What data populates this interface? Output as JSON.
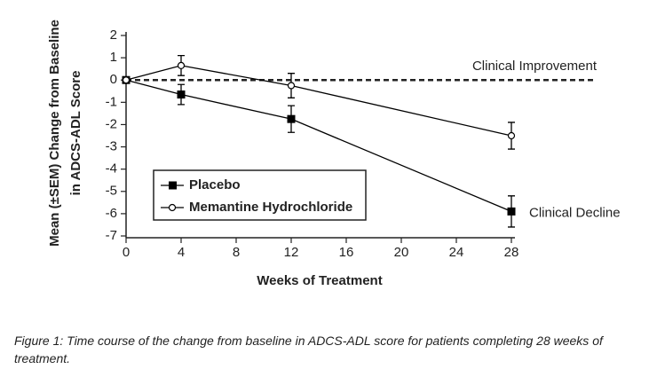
{
  "chart_data": {
    "type": "line",
    "xlabel": "Weeks of Treatment",
    "ylabel": [
      "Mean (±SEM) Change from Baseline",
      "in ADCS-ADL Score"
    ],
    "x": [
      0,
      4,
      12,
      28
    ],
    "series": [
      {
        "name": "Placebo",
        "color": "#000000",
        "marker": "square",
        "values": [
          0,
          -0.65,
          -1.75,
          -5.9
        ],
        "errors": [
          null,
          0.45,
          0.6,
          0.7
        ]
      },
      {
        "name": "Memantine Hydrochloride",
        "color": "#000000",
        "marker": "open-circle",
        "values": [
          0,
          0.65,
          -0.25,
          -2.5
        ],
        "errors": [
          null,
          0.45,
          0.55,
          0.6
        ]
      }
    ],
    "reference_line": {
      "value": 0,
      "label": "Clinical Improvement"
    },
    "annotations": [
      "Clinical Decline"
    ],
    "xlim": [
      0,
      28
    ],
    "xticks": [
      0,
      4,
      8,
      12,
      16,
      20,
      24,
      28
    ],
    "ylim": [
      -7,
      2
    ],
    "yticks": [
      -7,
      -6,
      -5,
      -4,
      -3,
      -2,
      -1,
      0,
      1,
      2
    ],
    "legend": "lower-left",
    "caption": "Figure 1: Time course of the change from baseline in ADCS-ADL score for patients completing 28 weeks of treatment."
  }
}
